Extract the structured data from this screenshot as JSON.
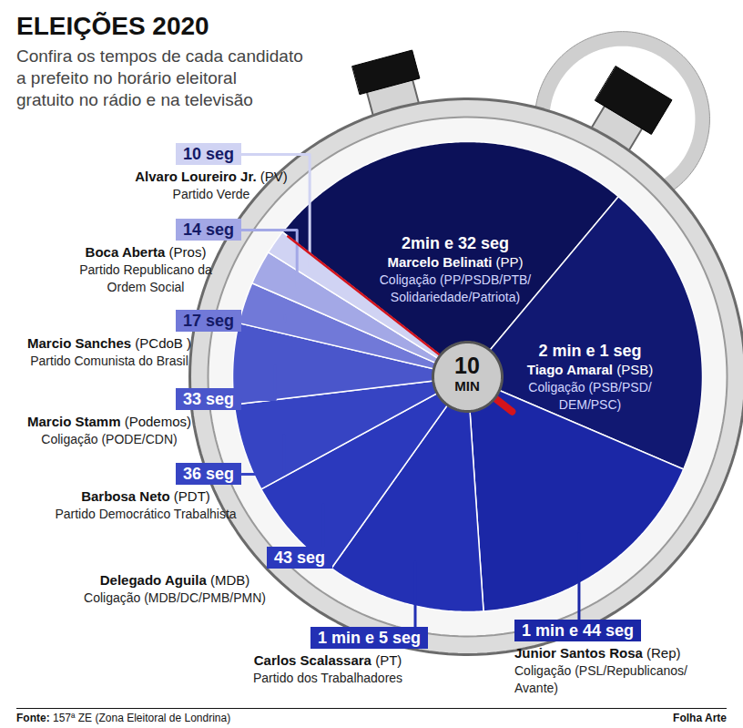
{
  "chart_data": {
    "type": "pie",
    "title": "ELEIÇÕES 2020",
    "subtitle": "Confira os tempos de cada candidato a prefeito no horário eleitoral gratuito no rádio e na televisão",
    "center_label": "10 MIN",
    "categories": [
      "Marcelo Belinati",
      "Tiago Amaral",
      "Junior Santos Rosa",
      "Carlos Scalassara",
      "Delegado Aguila",
      "Barbosa Neto",
      "Marcio Stamm",
      "Marcio Sanches",
      "Boca Aberta",
      "Alvaro Loureiro Jr."
    ],
    "parties": [
      "(PP)",
      "(PSB)",
      "(Rep)",
      "(PT)",
      "(MDB)",
      "(PDT)",
      "(Podemos)",
      "(PCdoB )",
      "(Pros)",
      "(PV)"
    ],
    "descriptions": [
      "Coligação (PP/PSDB/PTB/Solidariedade/Patriota)",
      "Coligação (PSB/PSD/DEM/PSC)",
      "Coligação (PSL/Republicanos/Avante)",
      "Partido dos Trabalhadores",
      "Coligação (MDB/DC/PMB/PMN)",
      "Partido Democrático Trabalhista",
      "Coligação (PODE/CDN)",
      "Partido Comunista do Brasil",
      "Partido Republicano da Ordem Social",
      "Partido Verde"
    ],
    "values": [
      152,
      121,
      104,
      65,
      43,
      36,
      33,
      17,
      14,
      10
    ],
    "value_labels": [
      "2min e 32 seg",
      "2 min e 1 seg",
      "1 min e 44 seg",
      "1 min e 5 seg",
      "43 seg",
      "36 seg",
      "33 seg",
      "17 seg",
      "14 seg",
      "10 seg"
    ],
    "colors": [
      "#0c1159",
      "#111872",
      "#1b27a6",
      "#2330b4",
      "#2b39bd",
      "#3644c3",
      "#4a56cb",
      "#7179d8",
      "#a3a8e6",
      "#d0d3f3"
    ],
    "data_labels": true,
    "source": "Fonte: 157ª ZE (Zona Eleitoral de Londrina)",
    "credit": "Folha Arte"
  }
}
